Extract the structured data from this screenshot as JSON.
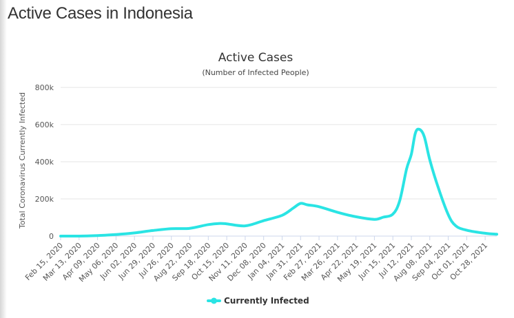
{
  "page": {
    "title": "Active Cases in Indonesia"
  },
  "chart_data": {
    "type": "line",
    "title": "Active Cases",
    "subtitle": "(Number of Infected People)",
    "xlabel": "",
    "ylabel": "Total Coronavirus Currently Infected",
    "ylim": [
      0,
      800000
    ],
    "yticks": [
      0,
      200000,
      400000,
      600000,
      800000
    ],
    "ytick_labels": [
      "0",
      "200k",
      "400k",
      "600k",
      "800k"
    ],
    "x_categories": [
      "Feb 15, 2020",
      "Mar 13, 2020",
      "Apr 09, 2020",
      "May 06, 2020",
      "Jun 02, 2020",
      "Jun 29, 2020",
      "Jul 26, 2020",
      "Aug 22, 2020",
      "Sep 18, 2020",
      "Oct 15, 2020",
      "Nov 11, 2020",
      "Dec 08, 2020",
      "Jan 04, 2021",
      "Jan 31, 2021",
      "Feb 27, 2021",
      "Mar 26, 2021",
      "Apr 22, 2021",
      "May 19, 2021",
      "Jun 15, 2021",
      "Jul 12, 2021",
      "Aug 08, 2021",
      "Sep 04, 2021",
      "Oct 01, 2021",
      "Oct 28, 2021"
    ],
    "x_start": "Feb 15, 2020",
    "x_end": "Nov 14, 2021",
    "grid": true,
    "legend_position": "bottom-center",
    "color": "#2ae4e4",
    "series": [
      {
        "name": "Currently Infected",
        "points": [
          [
            "Feb 15, 2020",
            0
          ],
          [
            "Mar 13, 2020",
            60
          ],
          [
            "Apr 09, 2020",
            2800
          ],
          [
            "May 06, 2020",
            8500
          ],
          [
            "Jun 02, 2020",
            17000
          ],
          [
            "Jun 29, 2020",
            30000
          ],
          [
            "Jul 26, 2020",
            40000
          ],
          [
            "Aug 22, 2020",
            42000
          ],
          [
            "Sep 18, 2020",
            62000
          ],
          [
            "Oct 05, 2020",
            68000
          ],
          [
            "Oct 15, 2020",
            66000
          ],
          [
            "Nov 11, 2020",
            55000
          ],
          [
            "Dec 08, 2020",
            83000
          ],
          [
            "Jan 04, 2021",
            112000
          ],
          [
            "Jan 20, 2021",
            150000
          ],
          [
            "Jan 31, 2021",
            176000
          ],
          [
            "Feb 10, 2021",
            168000
          ],
          [
            "Feb 27, 2021",
            158000
          ],
          [
            "Mar 26, 2021",
            128000
          ],
          [
            "Apr 22, 2021",
            104000
          ],
          [
            "May 19, 2021",
            90000
          ],
          [
            "Jun 01, 2021",
            102000
          ],
          [
            "Jun 15, 2021",
            118000
          ],
          [
            "Jun 25, 2021",
            190000
          ],
          [
            "Jul 05, 2021",
            360000
          ],
          [
            "Jul 12, 2021",
            440000
          ],
          [
            "Jul 18, 2021",
            555000
          ],
          [
            "Jul 24, 2021",
            574000
          ],
          [
            "Jul 31, 2021",
            535000
          ],
          [
            "Aug 08, 2021",
            410000
          ],
          [
            "Aug 20, 2021",
            265000
          ],
          [
            "Sep 04, 2021",
            115000
          ],
          [
            "Sep 15, 2021",
            55000
          ],
          [
            "Oct 01, 2021",
            32000
          ],
          [
            "Oct 28, 2021",
            15000
          ],
          [
            "Nov 14, 2021",
            10000
          ]
        ]
      }
    ]
  }
}
